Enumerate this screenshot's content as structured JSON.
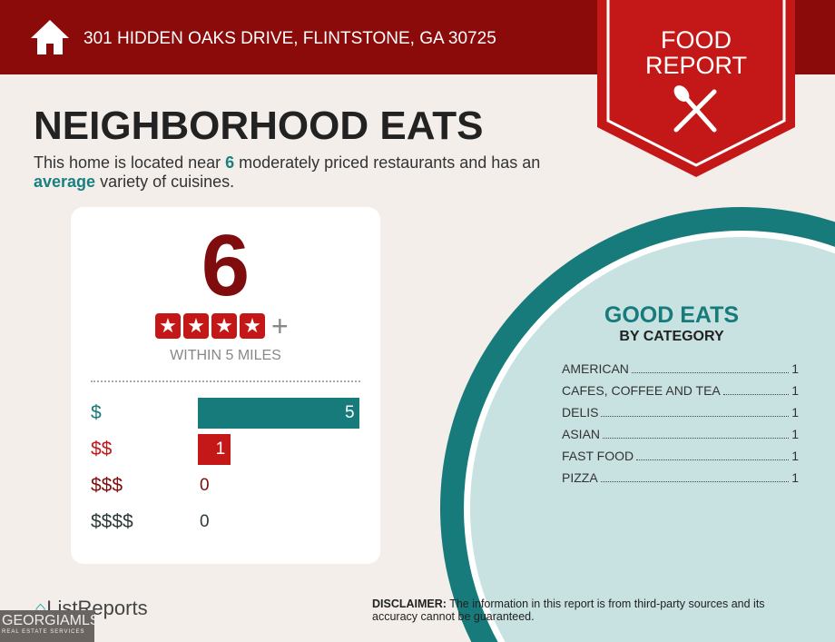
{
  "header": {
    "address": "301 HIDDEN OAKS DRIVE, FLINTSTONE, GA 30725",
    "badge_line1": "FOOD",
    "badge_line2": "REPORT"
  },
  "title": "NEIGHBORHOOD EATS",
  "summary": {
    "pre": "This home is located near ",
    "count": "6",
    "mid": " moderately priced restaurants and has an ",
    "variety": "average",
    "post": " variety of cuisines."
  },
  "card": {
    "total": "6",
    "rating_stars": 4,
    "rating_plus": "+",
    "radius": "WITHIN 5 MILES",
    "price_levels": [
      {
        "label": "$",
        "count": 5,
        "color": "#177a7b"
      },
      {
        "label": "$$",
        "count": 1,
        "color": "#c41818"
      },
      {
        "label": "$$$",
        "count": 0,
        "color": "#7f0d0d"
      },
      {
        "label": "$$$$",
        "count": 0,
        "color": "#2d3a3a"
      }
    ]
  },
  "good_eats": {
    "title": "GOOD EATS",
    "subtitle": "BY CATEGORY",
    "categories": [
      {
        "name": "AMERICAN",
        "count": "1"
      },
      {
        "name": "CAFES, COFFEE AND TEA",
        "count": "1"
      },
      {
        "name": "DELIS",
        "count": "1"
      },
      {
        "name": "ASIAN",
        "count": "1"
      },
      {
        "name": "FAST FOOD",
        "count": "1"
      },
      {
        "name": "PIZZA",
        "count": "1"
      }
    ]
  },
  "footer": {
    "brand": "ListReports",
    "disclaimer_label": "DISCLAIMER:",
    "disclaimer": " The information in this report is from third-party sources and its accuracy cannot be guaranteed.",
    "watermark": "GEORGIAMLS",
    "watermark_sub": "REAL ESTATE SERVICES"
  },
  "colors": {
    "header": "#8b0a0a",
    "teal": "#177a7b",
    "red": "#c41818"
  }
}
